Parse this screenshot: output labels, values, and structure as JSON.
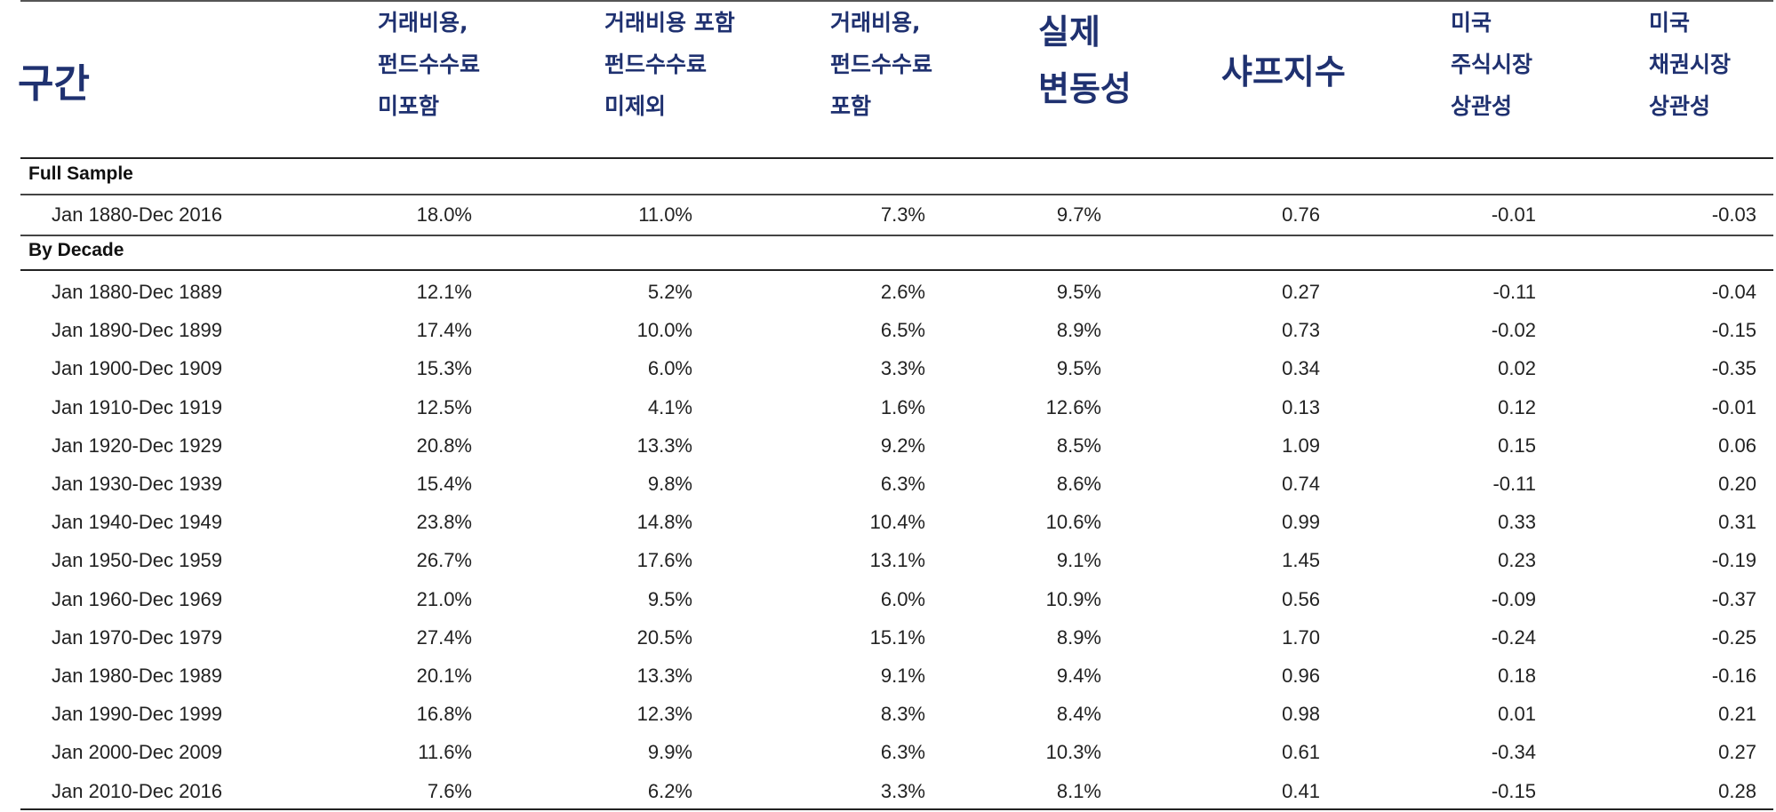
{
  "header": {
    "period": "구간",
    "gross": [
      "거래비용,",
      "펀드수수료",
      "미포함"
    ],
    "net_ex": [
      "거래비용 포함",
      "펀드수수료",
      "미제외"
    ],
    "net": [
      "거래비용,",
      "펀드수수료",
      "포함"
    ],
    "vol": [
      "실제",
      "변동성"
    ],
    "sharpe": "샤프지수",
    "us_equity": [
      "미국",
      "주식시장",
      "상관성"
    ],
    "us_bond": [
      "미국",
      "채권시장",
      "상관성"
    ]
  },
  "sections": {
    "full": "Full Sample",
    "decade": "By Decade"
  },
  "full_sample": [
    {
      "period": "Jan 1880-Dec 2016",
      "gross": "18.0%",
      "net_ex": "11.0%",
      "net": "7.3%",
      "vol": "9.7%",
      "sharpe": "0.76",
      "eq": "-0.01",
      "bond": "-0.03"
    }
  ],
  "decades": [
    {
      "period": "Jan 1880-Dec 1889",
      "gross": "12.1%",
      "net_ex": "5.2%",
      "net": "2.6%",
      "vol": "9.5%",
      "sharpe": "0.27",
      "eq": "-0.11",
      "bond": "-0.04"
    },
    {
      "period": "Jan 1890-Dec 1899",
      "gross": "17.4%",
      "net_ex": "10.0%",
      "net": "6.5%",
      "vol": "8.9%",
      "sharpe": "0.73",
      "eq": "-0.02",
      "bond": "-0.15"
    },
    {
      "period": "Jan 1900-Dec 1909",
      "gross": "15.3%",
      "net_ex": "6.0%",
      "net": "3.3%",
      "vol": "9.5%",
      "sharpe": "0.34",
      "eq": "0.02",
      "bond": "-0.35"
    },
    {
      "period": "Jan 1910-Dec 1919",
      "gross": "12.5%",
      "net_ex": "4.1%",
      "net": "1.6%",
      "vol": "12.6%",
      "sharpe": "0.13",
      "eq": "0.12",
      "bond": "-0.01"
    },
    {
      "period": "Jan 1920-Dec 1929",
      "gross": "20.8%",
      "net_ex": "13.3%",
      "net": "9.2%",
      "vol": "8.5%",
      "sharpe": "1.09",
      "eq": "0.15",
      "bond": "0.06"
    },
    {
      "period": "Jan 1930-Dec 1939",
      "gross": "15.4%",
      "net_ex": "9.8%",
      "net": "6.3%",
      "vol": "8.6%",
      "sharpe": "0.74",
      "eq": "-0.11",
      "bond": "0.20"
    },
    {
      "period": "Jan 1940-Dec 1949",
      "gross": "23.8%",
      "net_ex": "14.8%",
      "net": "10.4%",
      "vol": "10.6%",
      "sharpe": "0.99",
      "eq": "0.33",
      "bond": "0.31"
    },
    {
      "period": "Jan 1950-Dec 1959",
      "gross": "26.7%",
      "net_ex": "17.6%",
      "net": "13.1%",
      "vol": "9.1%",
      "sharpe": "1.45",
      "eq": "0.23",
      "bond": "-0.19"
    },
    {
      "period": "Jan 1960-Dec 1969",
      "gross": "21.0%",
      "net_ex": "9.5%",
      "net": "6.0%",
      "vol": "10.9%",
      "sharpe": "0.56",
      "eq": "-0.09",
      "bond": "-0.37"
    },
    {
      "period": "Jan 1970-Dec 1979",
      "gross": "27.4%",
      "net_ex": "20.5%",
      "net": "15.1%",
      "vol": "8.9%",
      "sharpe": "1.70",
      "eq": "-0.24",
      "bond": "-0.25"
    },
    {
      "period": "Jan 1980-Dec 1989",
      "gross": "20.1%",
      "net_ex": "13.3%",
      "net": "9.1%",
      "vol": "9.4%",
      "sharpe": "0.96",
      "eq": "0.18",
      "bond": "-0.16"
    },
    {
      "period": "Jan 1990-Dec 1999",
      "gross": "16.8%",
      "net_ex": "12.3%",
      "net": "8.3%",
      "vol": "8.4%",
      "sharpe": "0.98",
      "eq": "0.01",
      "bond": "0.21"
    },
    {
      "period": "Jan 2000-Dec 2009",
      "gross": "11.6%",
      "net_ex": "9.9%",
      "net": "6.3%",
      "vol": "10.3%",
      "sharpe": "0.61",
      "eq": "-0.34",
      "bond": "0.27"
    },
    {
      "period": "Jan 2010-Dec 2016",
      "gross": "7.6%",
      "net_ex": "6.2%",
      "net": "3.3%",
      "vol": "8.1%",
      "sharpe": "0.41",
      "eq": "-0.15",
      "bond": "0.28"
    }
  ],
  "colors": {
    "header_text": "#1f3170",
    "body_text": "#222222",
    "rule": "#222222"
  }
}
